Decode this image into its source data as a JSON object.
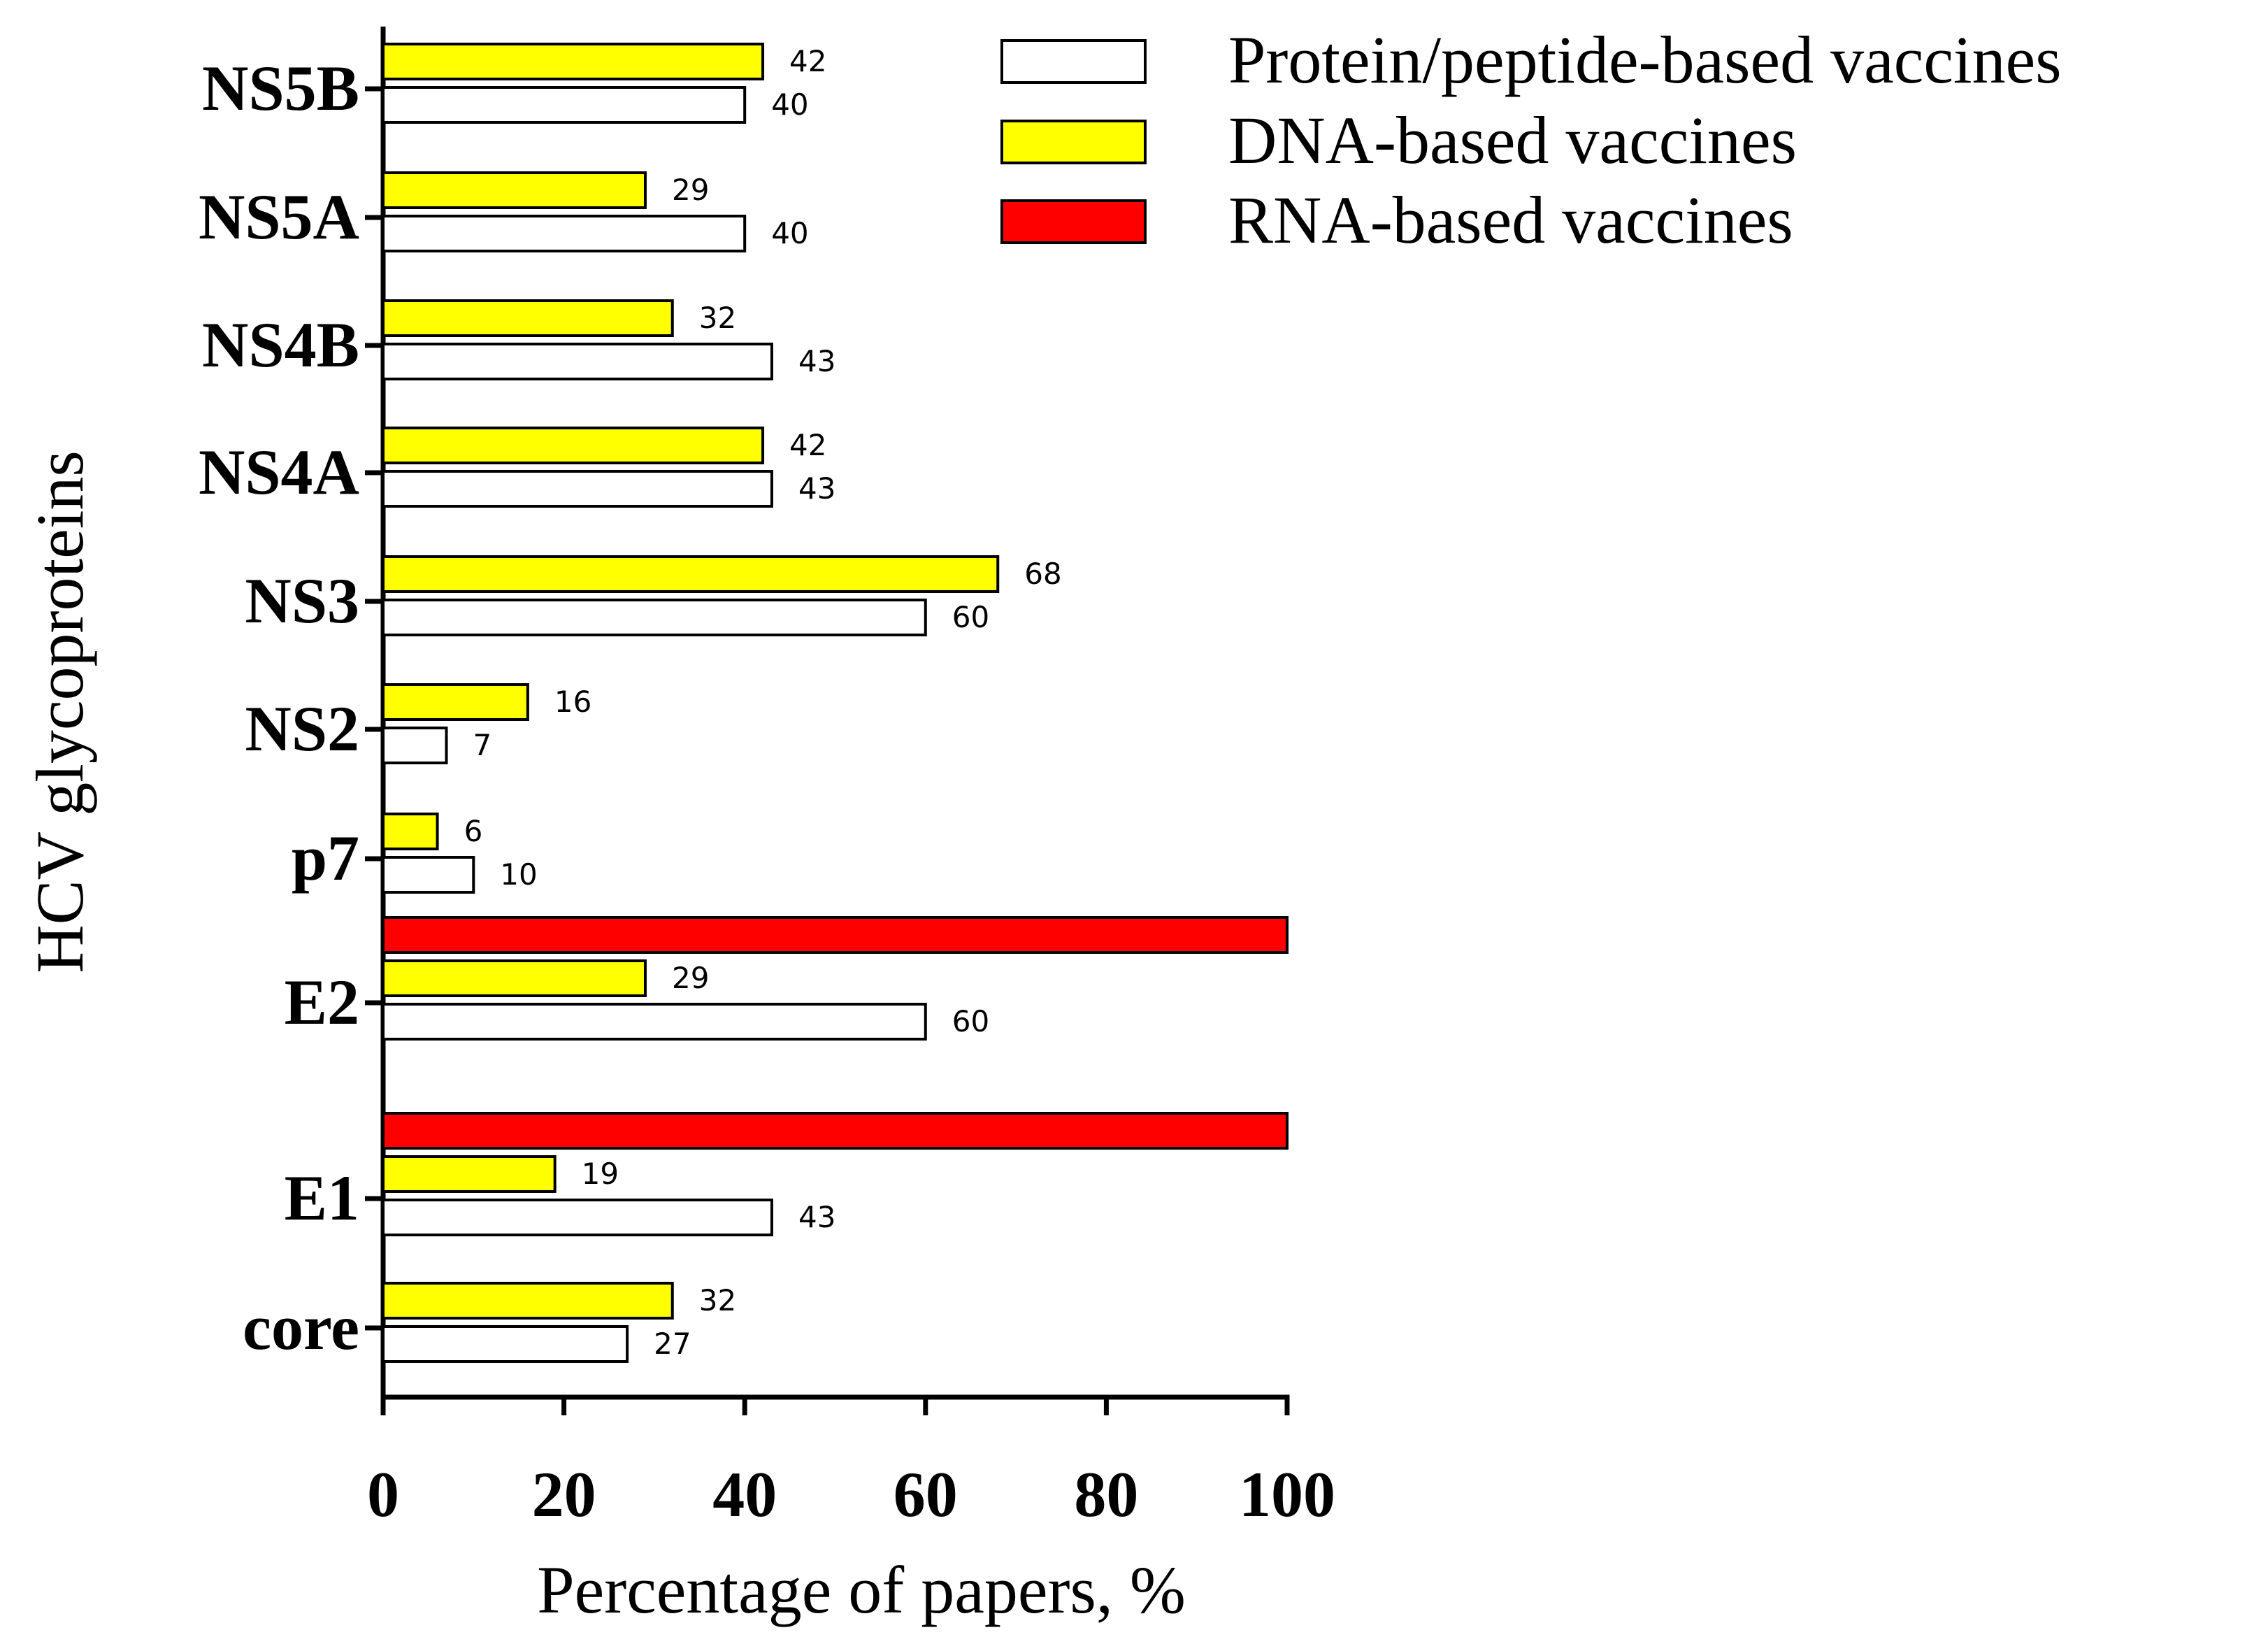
{
  "chart_data": {
    "type": "bar",
    "orientation": "horizontal",
    "categories": [
      "core",
      "E1",
      "E2",
      "p7",
      "NS2",
      "NS3",
      "NS4A",
      "NS4B",
      "NS5A",
      "NS5B"
    ],
    "series": [
      {
        "name": "RNA-based vaccines",
        "color": "#FF0000",
        "values": [
          null,
          100,
          100,
          null,
          null,
          null,
          null,
          null,
          null,
          null
        ],
        "show_labels": false
      },
      {
        "name": "DNA-based vaccines",
        "color": "#FFFF00",
        "values": [
          32,
          19,
          29,
          6,
          16,
          68,
          42,
          32,
          29,
          42
        ],
        "show_labels": true
      },
      {
        "name": "Protein/peptide-based vaccines",
        "color": "#FFFFFF",
        "values": [
          27,
          43,
          60,
          10,
          7,
          60,
          43,
          43,
          40,
          40
        ],
        "show_labels": true
      }
    ],
    "legend_order": [
      "Protein/peptide-based vaccines",
      "DNA-based vaccines",
      "RNA-based vaccines"
    ],
    "legend_position": "top-right",
    "xlabel": "Percentage of papers, %",
    "ylabel": "HCV glycoproteins",
    "xlim": [
      0,
      100
    ],
    "xticks": [
      0,
      20,
      40,
      60,
      80,
      100
    ],
    "grid": false,
    "title": ""
  }
}
